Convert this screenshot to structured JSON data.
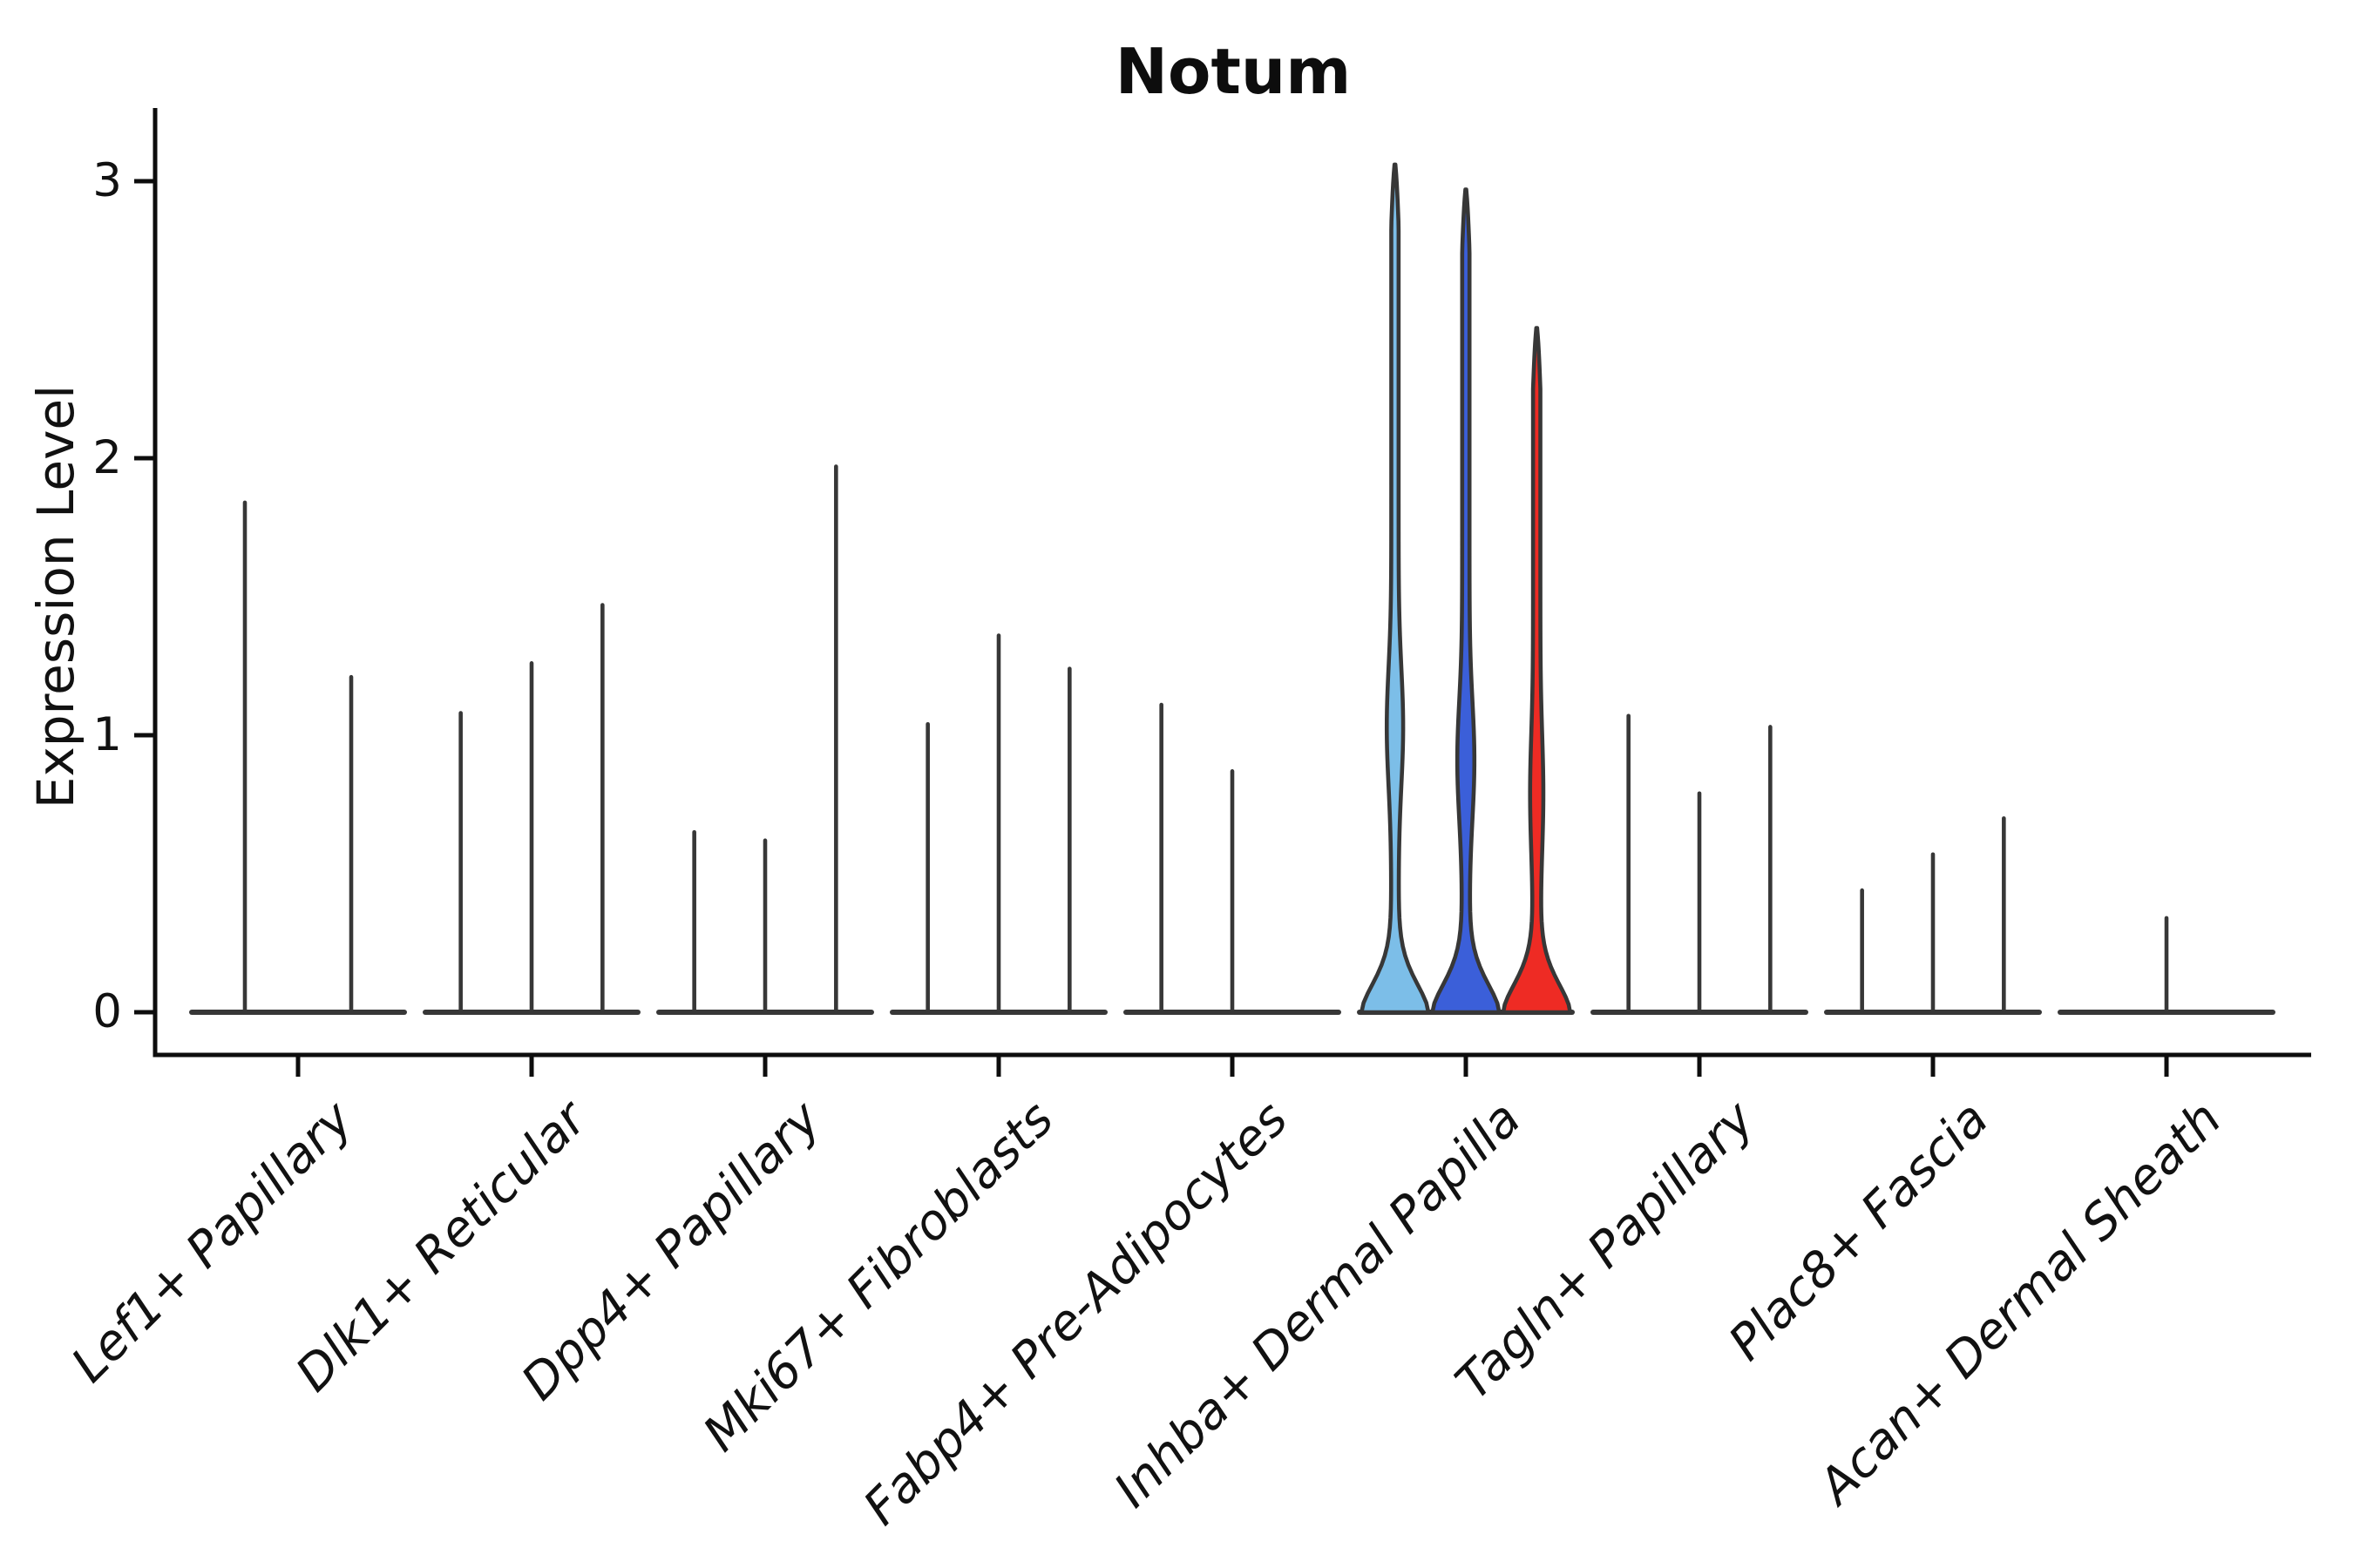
{
  "chart_data": {
    "type": "violin",
    "title": "Notum",
    "ylabel": "Expression Level",
    "xlabel": "",
    "yticks": [
      0,
      1,
      2,
      3
    ],
    "ylim": [
      -0.16,
      3.25
    ],
    "grid": false,
    "legend": null,
    "colors": {
      "violin_stroke": "#373737",
      "axis": "#0d0d0d",
      "inhba_light_blue": "#7CBEE8",
      "inhba_blue": "#3B5FD9",
      "inhba_red": "#EE2B24"
    },
    "categories": [
      {
        "label": "Lef1+ Papillary",
        "violins": [
          {
            "max": 1.84
          },
          {
            "max": 1.21
          }
        ]
      },
      {
        "label": "Dlk1+ Reticular",
        "violins": [
          {
            "max": 1.08
          },
          {
            "max": 1.26
          },
          {
            "max": 1.47
          }
        ]
      },
      {
        "label": "Dpp4+ Papillary",
        "violins": [
          {
            "max": 0.65
          },
          {
            "max": 0.62
          },
          {
            "max": 1.97
          }
        ]
      },
      {
        "label": "Mki67+ Fibroblasts",
        "violins": [
          {
            "max": 1.04
          },
          {
            "max": 1.36
          },
          {
            "max": 1.24
          }
        ]
      },
      {
        "label": "Fabp4+ Pre-Adipocytes",
        "violins": [
          {
            "max": 1.11
          },
          {
            "max": 0.87
          },
          {
            "max": 0
          }
        ]
      },
      {
        "label": "Inhba+ Dermal Papilla",
        "violins": [
          {
            "max": 3.06,
            "color": "#7CBEE8",
            "bulge_center": 1.03,
            "bulge_halfwidth": 5.2
          },
          {
            "max": 2.97,
            "color": "#3B5FD9",
            "bulge_center": 0.91,
            "bulge_halfwidth": 5.6
          },
          {
            "max": 2.47,
            "color": "#EE2B24",
            "bulge_center": 0.79,
            "bulge_halfwidth": 3.4
          }
        ]
      },
      {
        "label": "Tagln+ Papillary",
        "violins": [
          {
            "max": 1.07
          },
          {
            "max": 0.79
          },
          {
            "max": 1.03
          }
        ]
      },
      {
        "label": "Plac8+ Fascia",
        "violins": [
          {
            "max": 0.44
          },
          {
            "max": 0.57
          },
          {
            "max": 0.7
          }
        ]
      },
      {
        "label": "Acan+ Dermal Sheath",
        "violins": [
          {
            "max": 0.34
          }
        ]
      }
    ]
  }
}
